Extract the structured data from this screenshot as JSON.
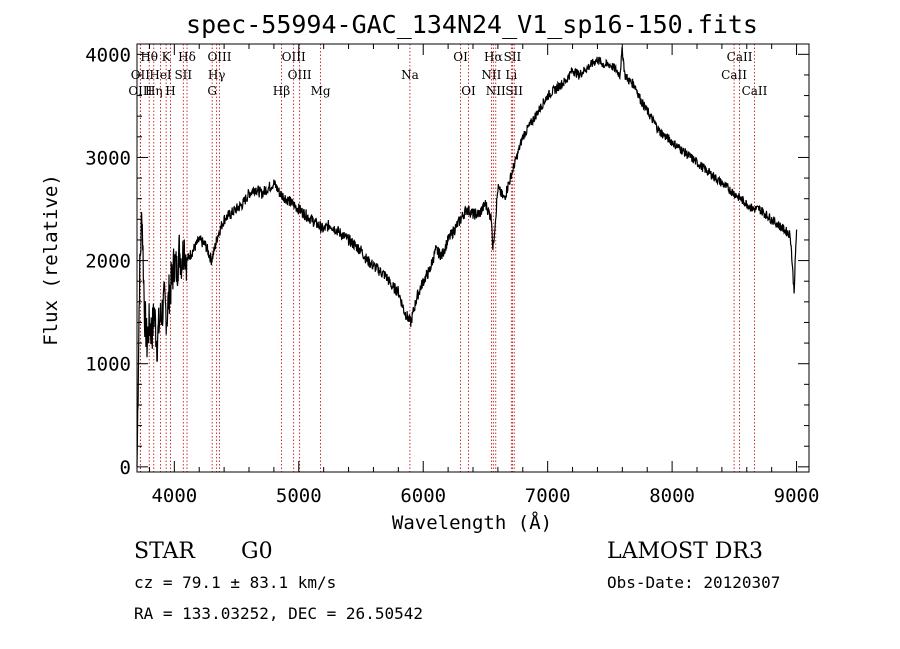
{
  "chart_data": {
    "type": "line",
    "title": "spec-55994-GAC_134N24_V1_sp16-150.fits",
    "xlabel": "Wavelength (Å)",
    "ylabel": "Flux (relative)",
    "xlim": [
      3700,
      9100
    ],
    "ylim": [
      -50,
      4100
    ],
    "x_ticks": [
      4000,
      5000,
      6000,
      7000,
      8000,
      9000
    ],
    "y_ticks": [
      0,
      1000,
      2000,
      3000,
      4000
    ],
    "series": [
      {
        "name": "flux",
        "x": [
          3700,
          3720,
          3740,
          3760,
          3780,
          3800,
          3820,
          3840,
          3860,
          3880,
          3900,
          3920,
          3940,
          3960,
          3980,
          4000,
          4020,
          4040,
          4060,
          4080,
          4100,
          4150,
          4200,
          4250,
          4300,
          4350,
          4400,
          4450,
          4500,
          4550,
          4600,
          4650,
          4700,
          4750,
          4800,
          4850,
          4900,
          4950,
          5000,
          5050,
          5100,
          5150,
          5200,
          5250,
          5300,
          5350,
          5400,
          5450,
          5500,
          5550,
          5600,
          5650,
          5700,
          5750,
          5800,
          5850,
          5900,
          5950,
          6000,
          6050,
          6100,
          6150,
          6200,
          6250,
          6300,
          6350,
          6400,
          6450,
          6500,
          6550,
          6560,
          6600,
          6650,
          6700,
          6750,
          6800,
          6850,
          6900,
          6950,
          7000,
          7050,
          7100,
          7150,
          7200,
          7250,
          7300,
          7350,
          7400,
          7450,
          7500,
          7550,
          7580,
          7600,
          7620,
          7650,
          7700,
          7750,
          7800,
          7850,
          7900,
          7950,
          8000,
          8050,
          8100,
          8150,
          8200,
          8250,
          8300,
          8350,
          8400,
          8450,
          8500,
          8550,
          8600,
          8650,
          8700,
          8750,
          8800,
          8850,
          8900,
          8950,
          8980,
          9000
        ],
        "y": [
          0,
          1800,
          2500,
          1500,
          1200,
          1400,
          1300,
          1500,
          1200,
          1400,
          1500,
          1600,
          1450,
          1700,
          1800,
          2000,
          1900,
          2100,
          2000,
          2150,
          2000,
          2100,
          2200,
          2150,
          2000,
          2250,
          2400,
          2450,
          2500,
          2550,
          2650,
          2700,
          2650,
          2700,
          2750,
          2650,
          2600,
          2550,
          2500,
          2450,
          2400,
          2350,
          2300,
          2350,
          2300,
          2250,
          2200,
          2150,
          2100,
          2000,
          1950,
          1900,
          1850,
          1750,
          1700,
          1500,
          1400,
          1650,
          1800,
          1900,
          2100,
          2050,
          2200,
          2300,
          2400,
          2500,
          2450,
          2450,
          2550,
          2400,
          2100,
          2700,
          2600,
          2800,
          3000,
          3200,
          3300,
          3400,
          3500,
          3600,
          3650,
          3700,
          3750,
          3850,
          3800,
          3850,
          3900,
          3950,
          3900,
          3900,
          3850,
          3800,
          4050,
          3800,
          3750,
          3700,
          3550,
          3450,
          3350,
          3250,
          3200,
          3150,
          3100,
          3050,
          3000,
          2950,
          2900,
          2850,
          2800,
          2750,
          2700,
          2650,
          2600,
          2550,
          2500,
          2500,
          2450,
          2400,
          2350,
          2300,
          2250,
          1700,
          2300
        ]
      }
    ],
    "spectral_lines": [
      {
        "label": "Hθ",
        "wavelength": 3798,
        "row": 0
      },
      {
        "label": "K",
        "wavelength": 3934,
        "row": 0
      },
      {
        "label": "Hδ",
        "wavelength": 4102,
        "row": 0
      },
      {
        "label": "OIII",
        "wavelength": 4363,
        "row": 0
      },
      {
        "label": "OIII",
        "wavelength": 4959,
        "row": 0
      },
      {
        "label": "OI",
        "wavelength": 6300,
        "row": 0
      },
      {
        "label": "Hα",
        "wavelength": 6563,
        "row": 0
      },
      {
        "label": "SII",
        "wavelength": 6717,
        "row": 0
      },
      {
        "label": "CaII",
        "wavelength": 8542,
        "row": 0
      },
      {
        "label": "OII",
        "wavelength": 3727,
        "row": 1
      },
      {
        "label": "HeI",
        "wavelength": 3889,
        "row": 1
      },
      {
        "label": "SII",
        "wavelength": 4072,
        "row": 1
      },
      {
        "label": "Hγ",
        "wavelength": 4340,
        "row": 1
      },
      {
        "label": "OIII",
        "wavelength": 5007,
        "row": 1
      },
      {
        "label": "Na",
        "wavelength": 5893,
        "row": 1
      },
      {
        "label": "NII",
        "wavelength": 6548,
        "row": 1
      },
      {
        "label": "Li",
        "wavelength": 6708,
        "row": 1
      },
      {
        "label": "CaII",
        "wavelength": 8498,
        "row": 1
      },
      {
        "label": "OIII",
        "wavelength": 3727,
        "row": 2
      },
      {
        "label": "Hη",
        "wavelength": 3835,
        "row": 2
      },
      {
        "label": "H",
        "wavelength": 3969,
        "row": 2
      },
      {
        "label": "G",
        "wavelength": 4304,
        "row": 2
      },
      {
        "label": "Hβ",
        "wavelength": 4861,
        "row": 2
      },
      {
        "label": "Mg",
        "wavelength": 5175,
        "row": 2
      },
      {
        "label": "OI",
        "wavelength": 6364,
        "row": 2
      },
      {
        "label": "NII",
        "wavelength": 6583,
        "row": 2
      },
      {
        "label": "SII",
        "wavelength": 6731,
        "row": 2
      },
      {
        "label": "CaII",
        "wavelength": 8662,
        "row": 2
      }
    ]
  },
  "info": {
    "object_class": "STAR",
    "subclass": "G0",
    "redshift": "cz = 79.1 ± 83.1 km/s",
    "coords": "RA = 133.03252, DEC =  26.50542",
    "survey": "LAMOST DR3",
    "obs_date": "Obs-Date: 20120307"
  },
  "colors": {
    "line_marker": "#c00000",
    "spectrum": "#000000"
  }
}
